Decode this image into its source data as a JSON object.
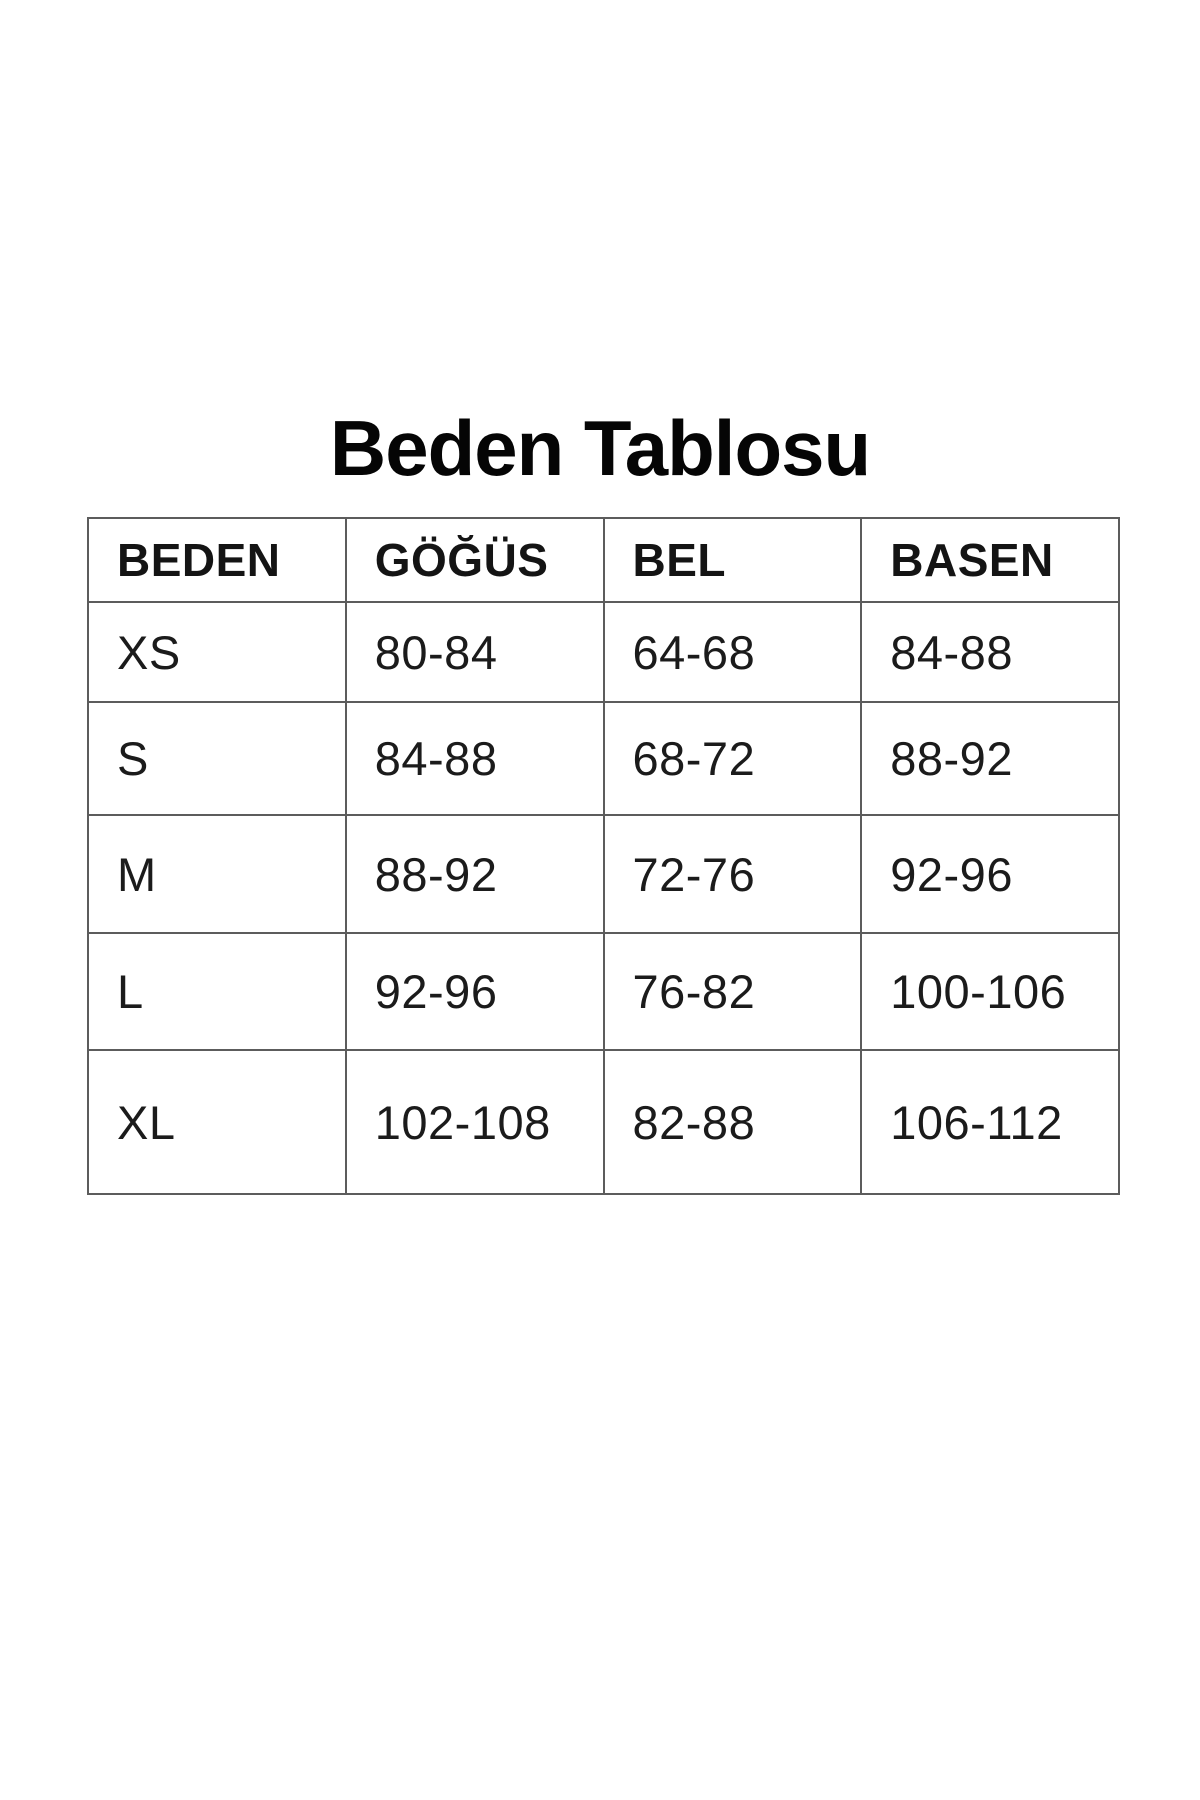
{
  "title": "Beden Tablosu",
  "table": {
    "headers": [
      "BEDEN",
      "GÖĞÜS",
      "BEL",
      "BASEN"
    ],
    "rows": [
      [
        "XS",
        "80-84",
        "64-68",
        "84-88"
      ],
      [
        "S",
        "84-88",
        "68-72",
        "88-92"
      ],
      [
        "M",
        "88-92",
        "72-76",
        "92-96"
      ],
      [
        "L",
        "92-96",
        "76-82",
        "100-106"
      ],
      [
        "XL",
        "102-108",
        "82-88",
        "106-112"
      ]
    ]
  },
  "chart_data": {
    "type": "table",
    "title": "Beden Tablosu",
    "columns": [
      "BEDEN",
      "GÖĞÜS",
      "BEL",
      "BASEN"
    ],
    "rows": [
      {
        "BEDEN": "XS",
        "GÖĞÜS": "80-84",
        "BEL": "64-68",
        "BASEN": "84-88"
      },
      {
        "BEDEN": "S",
        "GÖĞÜS": "84-88",
        "BEL": "68-72",
        "BASEN": "88-92"
      },
      {
        "BEDEN": "M",
        "GÖĞÜS": "88-92",
        "BEL": "72-76",
        "BASEN": "92-96"
      },
      {
        "BEDEN": "L",
        "GÖĞÜS": "92-96",
        "BEL": "76-82",
        "BASEN": "100-106"
      },
      {
        "BEDEN": "XL",
        "GÖĞÜS": "102-108",
        "BEL": "82-88",
        "BASEN": "106-112"
      }
    ],
    "layout_hints": {
      "header_row": true,
      "grid": "all-borders",
      "column_count": 4,
      "row_count": 5
    }
  },
  "colors": {
    "background": "#ffffff",
    "title_text": "#050505",
    "header_text": "#141414",
    "body_text": "#1b1b1b",
    "border": "#5c5c5c"
  }
}
